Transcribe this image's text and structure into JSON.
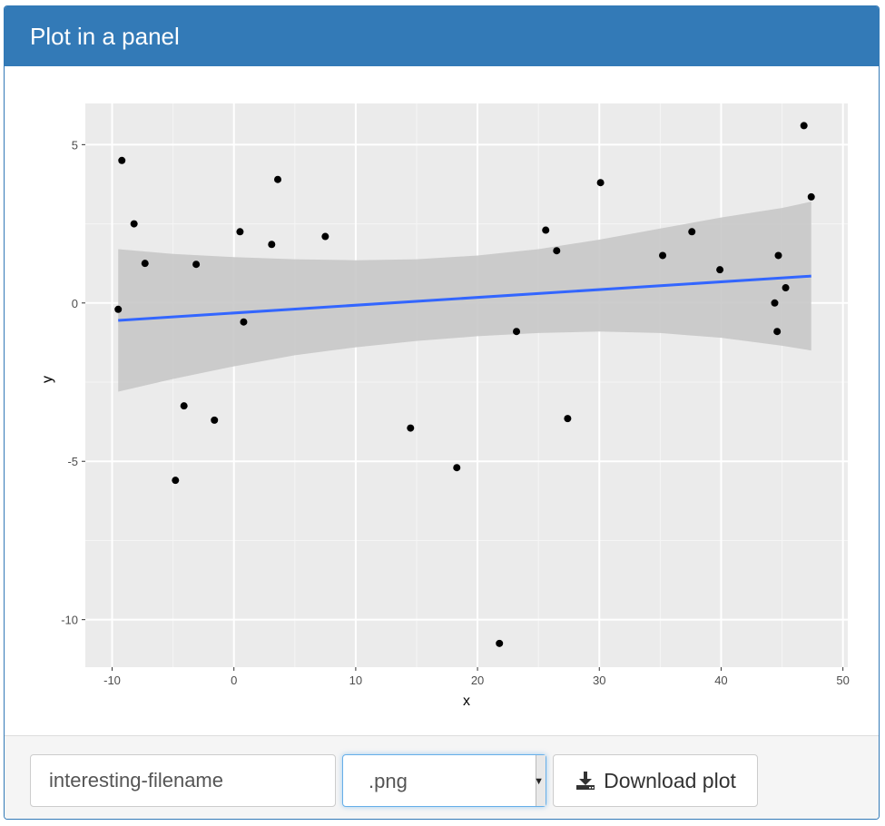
{
  "panel": {
    "title": "Plot in a panel"
  },
  "footer": {
    "filename_value": "interesting-filename",
    "extension_value": ".png",
    "download_label": "Download plot",
    "download_icon": "download-icon"
  },
  "colors": {
    "panel_header": "#337ab7",
    "plot_background": "#ebebeb",
    "fit_line": "#3366ff",
    "confidence_band": "#c8c8c8",
    "points": "#000000"
  },
  "chart_data": {
    "type": "scatter",
    "xlabel": "x",
    "ylabel": "y",
    "xlim": [
      -12.2,
      50.4
    ],
    "ylim": [
      -11.5,
      6.3
    ],
    "xticks": [
      -10,
      0,
      10,
      20,
      30,
      40,
      50
    ],
    "yticks": [
      -10,
      -5,
      0,
      5
    ],
    "xtick_labels": [
      "-10",
      "0",
      "10",
      "20",
      "30",
      "40",
      "50"
    ],
    "ytick_labels": [
      "-10",
      "-5",
      "0",
      "5"
    ],
    "grid": true,
    "points": [
      {
        "x": -9.5,
        "y": -0.2
      },
      {
        "x": -9.2,
        "y": 4.5
      },
      {
        "x": -8.2,
        "y": 2.5
      },
      {
        "x": -7.3,
        "y": 1.25
      },
      {
        "x": -4.8,
        "y": -5.6
      },
      {
        "x": -4.1,
        "y": -3.25
      },
      {
        "x": -3.1,
        "y": 1.22
      },
      {
        "x": -1.6,
        "y": -3.7
      },
      {
        "x": 0.5,
        "y": 2.25
      },
      {
        "x": 0.8,
        "y": -0.6
      },
      {
        "x": 3.1,
        "y": 1.85
      },
      {
        "x": 3.6,
        "y": 3.9
      },
      {
        "x": 7.5,
        "y": 2.1
      },
      {
        "x": 14.5,
        "y": -3.95
      },
      {
        "x": 18.3,
        "y": -5.2
      },
      {
        "x": 21.8,
        "y": -10.75
      },
      {
        "x": 23.2,
        "y": -0.9
      },
      {
        "x": 25.6,
        "y": 2.3
      },
      {
        "x": 26.5,
        "y": 1.65
      },
      {
        "x": 27.4,
        "y": -3.65
      },
      {
        "x": 30.1,
        "y": 3.8
      },
      {
        "x": 35.2,
        "y": 1.5
      },
      {
        "x": 37.6,
        "y": 2.25
      },
      {
        "x": 39.9,
        "y": 1.05
      },
      {
        "x": 44.4,
        "y": 0.0
      },
      {
        "x": 44.6,
        "y": -0.9
      },
      {
        "x": 44.7,
        "y": 1.5
      },
      {
        "x": 45.3,
        "y": 0.48
      },
      {
        "x": 46.8,
        "y": 5.6
      },
      {
        "x": 47.4,
        "y": 3.35
      }
    ],
    "fit_line": {
      "x": [
        -9.5,
        47.4
      ],
      "y": [
        -0.55,
        0.85
      ]
    },
    "confidence_band": {
      "x": [
        -9.5,
        -5,
        0,
        5,
        10,
        15,
        20,
        25,
        30,
        35,
        40,
        45,
        47.4
      ],
      "upper": [
        1.7,
        1.55,
        1.45,
        1.38,
        1.35,
        1.38,
        1.5,
        1.7,
        2.0,
        2.35,
        2.7,
        3.0,
        3.2
      ],
      "lower": [
        -2.8,
        -2.4,
        -2.0,
        -1.65,
        -1.4,
        -1.2,
        -1.05,
        -0.95,
        -0.9,
        -0.95,
        -1.1,
        -1.35,
        -1.5
      ]
    }
  }
}
